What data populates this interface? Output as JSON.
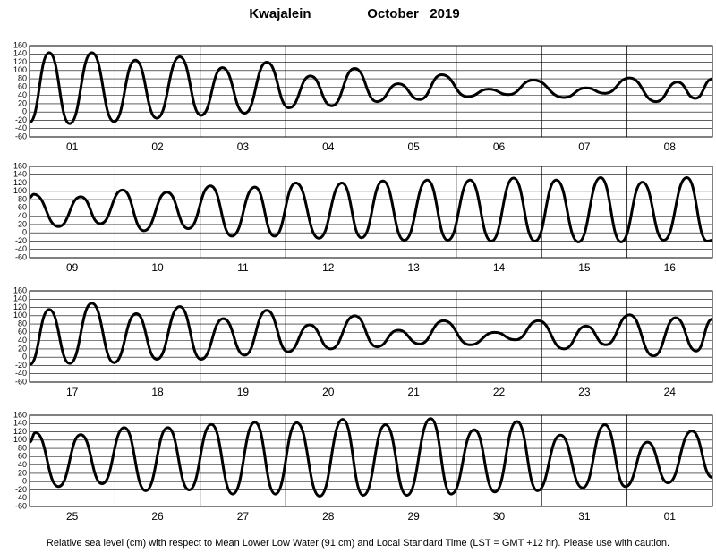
{
  "title": "Kwajalein",
  "subtitle": "October   2019",
  "caption": "Relative sea level (cm) with respect to Mean Lower Low Water (91 cm) and Local Standard Time (LST = GMT +12 hr). Please use with caution.",
  "chart_data": [
    {
      "type": "line",
      "color": "#000000",
      "grid": true,
      "categories": [
        "01",
        "02",
        "03",
        "04",
        "05",
        "06",
        "07",
        "08"
      ],
      "xlim": [
        0,
        8
      ],
      "ylim": [
        -60,
        160
      ],
      "yticks": [
        -60,
        -40,
        -20,
        0,
        20,
        40,
        60,
        80,
        100,
        120,
        140,
        160
      ],
      "x": [
        0,
        0.23,
        0.47,
        0.73,
        0.99,
        1.24,
        1.49,
        1.76,
        2.01,
        2.26,
        2.52,
        2.78,
        3.04,
        3.29,
        3.54,
        3.81,
        4.07,
        4.32,
        4.57,
        4.83,
        5.13,
        5.38,
        5.61,
        5.9,
        6.26,
        6.52,
        6.74,
        7.03,
        7.34,
        7.59,
        7.8,
        8
      ],
      "values": [
        -25,
        143,
        -28,
        143,
        -23,
        125,
        -15,
        133,
        -8,
        107,
        -3,
        120,
        10,
        87,
        15,
        105,
        25,
        68,
        30,
        90,
        37,
        55,
        42,
        77,
        35,
        58,
        45,
        82,
        25,
        72,
        33,
        80
      ]
    },
    {
      "type": "line",
      "color": "#000000",
      "grid": true,
      "categories": [
        "09",
        "10",
        "11",
        "12",
        "13",
        "14",
        "15",
        "16"
      ],
      "xlim": [
        0,
        8
      ],
      "ylim": [
        -60,
        160
      ],
      "yticks": [
        -60,
        -40,
        -20,
        0,
        20,
        40,
        60,
        80,
        100,
        120,
        140,
        160
      ],
      "x": [
        0,
        0.05,
        0.34,
        0.6,
        0.83,
        1.09,
        1.34,
        1.61,
        1.86,
        2.12,
        2.37,
        2.64,
        2.87,
        3.12,
        3.39,
        3.66,
        3.89,
        4.14,
        4.39,
        4.66,
        4.9,
        5.16,
        5.41,
        5.67,
        5.92,
        6.17,
        6.43,
        6.69,
        6.93,
        7.18,
        7.43,
        7.7,
        7.94,
        8
      ],
      "values": [
        85,
        93,
        15,
        87,
        22,
        103,
        5,
        98,
        10,
        113,
        -8,
        110,
        -8,
        120,
        -13,
        120,
        -12,
        125,
        -18,
        127,
        -18,
        127,
        -20,
        132,
        -20,
        127,
        -22,
        133,
        -22,
        122,
        -18,
        133,
        -20,
        -18
      ]
    },
    {
      "type": "line",
      "color": "#000000",
      "grid": true,
      "categories": [
        "17",
        "18",
        "19",
        "20",
        "21",
        "22",
        "23",
        "24"
      ],
      "xlim": [
        0,
        8
      ],
      "ylim": [
        -60,
        160
      ],
      "yticks": [
        -60,
        -40,
        -20,
        0,
        20,
        40,
        60,
        80,
        100,
        120,
        140,
        160
      ],
      "x": [
        0,
        0.23,
        0.47,
        0.73,
        0.99,
        1.25,
        1.49,
        1.76,
        2.01,
        2.27,
        2.52,
        2.78,
        3.03,
        3.28,
        3.53,
        3.81,
        4.07,
        4.32,
        4.57,
        4.85,
        5.16,
        5.45,
        5.69,
        5.96,
        6.26,
        6.52,
        6.75,
        7.03,
        7.31,
        7.57,
        7.81,
        8
      ],
      "values": [
        -18,
        115,
        -15,
        130,
        -13,
        105,
        -5,
        122,
        -5,
        93,
        5,
        113,
        13,
        78,
        20,
        100,
        25,
        65,
        32,
        88,
        30,
        60,
        42,
        88,
        20,
        75,
        30,
        102,
        3,
        95,
        15,
        92
      ]
    },
    {
      "type": "line",
      "color": "#000000",
      "grid": true,
      "categories": [
        "25",
        "26",
        "27",
        "28",
        "29",
        "30",
        "31",
        "01"
      ],
      "xlim": [
        0,
        8
      ],
      "ylim": [
        -60,
        160
      ],
      "yticks": [
        -60,
        -40,
        -20,
        0,
        20,
        40,
        60,
        80,
        100,
        120,
        140,
        160
      ],
      "x": [
        0,
        0.07,
        0.34,
        0.6,
        0.85,
        1.11,
        1.36,
        1.62,
        1.87,
        2.13,
        2.38,
        2.64,
        2.88,
        3.13,
        3.4,
        3.67,
        3.91,
        4.17,
        4.42,
        4.7,
        4.94,
        5.21,
        5.45,
        5.71,
        5.95,
        6.22,
        6.48,
        6.74,
        6.98,
        7.24,
        7.48,
        7.76,
        8
      ],
      "values": [
        95,
        118,
        -12,
        113,
        -5,
        130,
        -22,
        130,
        -20,
        138,
        -30,
        143,
        -30,
        142,
        -35,
        150,
        -33,
        137,
        -33,
        152,
        -30,
        125,
        -25,
        145,
        -22,
        112,
        -15,
        137,
        -12,
        95,
        -3,
        122,
        10
      ]
    }
  ]
}
